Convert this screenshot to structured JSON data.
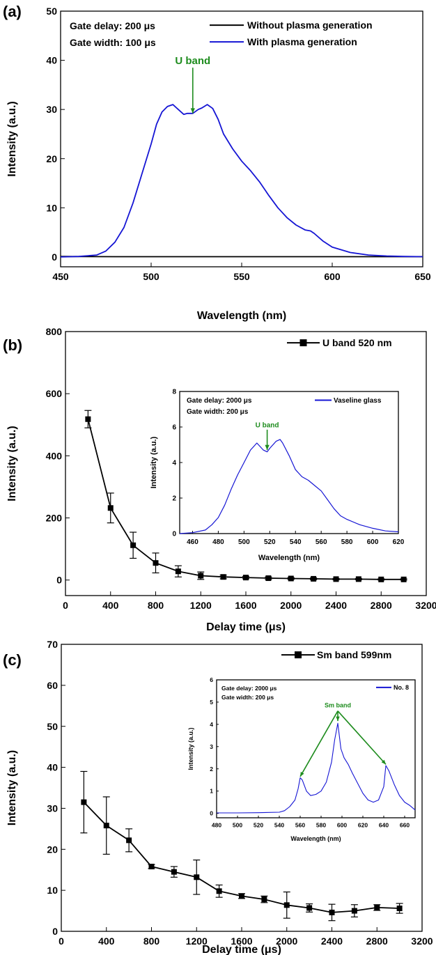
{
  "chart_data": [
    {
      "id": "a",
      "panel_label": "(a)",
      "type": "line",
      "xlabel": "Wavelength (nm)",
      "ylabel": "Intensity (a.u.)",
      "xlim": [
        450,
        650
      ],
      "ylim": [
        -2,
        50
      ],
      "xticks": [
        450,
        500,
        550,
        600,
        650
      ],
      "yticks": [
        0,
        10,
        20,
        30,
        40,
        50
      ],
      "grid": false,
      "legend_position": "top-right",
      "notes": [
        "Gate delay: 200 μs",
        "Gate width: 100 μs"
      ],
      "annotation": {
        "text": "U band",
        "arrow_from": [
          523,
          38.5
        ],
        "arrow_to": [
          523,
          29.2
        ],
        "color": "#1e8c1e"
      },
      "series": [
        {
          "name": "Without plasma generation",
          "color": "#000000",
          "x": [
            450,
            480,
            520,
            560,
            600,
            650
          ],
          "y": [
            0.1,
            0.05,
            0.05,
            0.05,
            0.05,
            0.05
          ]
        },
        {
          "name": "With plasma generation",
          "color": "#1515d4",
          "x": [
            450,
            460,
            470,
            475,
            480,
            485,
            490,
            495,
            500,
            503,
            506,
            509,
            512,
            515,
            518,
            520,
            523,
            526,
            528,
            531,
            534,
            537,
            540,
            545,
            550,
            555,
            560,
            565,
            570,
            575,
            580,
            585,
            588,
            590,
            595,
            600,
            610,
            620,
            630,
            640,
            650
          ],
          "y": [
            0,
            0.1,
            0.4,
            1.2,
            3,
            6,
            11,
            17,
            23,
            27,
            29.5,
            30.6,
            31,
            30,
            29,
            29.2,
            29.2,
            30,
            30.3,
            31,
            30.2,
            28,
            25,
            22,
            19.5,
            17.5,
            15.2,
            12.5,
            10,
            8,
            6.5,
            5.5,
            5.3,
            4.8,
            3.2,
            2,
            0.9,
            0.4,
            0.2,
            0.1,
            0.05
          ]
        }
      ]
    },
    {
      "id": "b",
      "panel_label": "(b)",
      "type": "line",
      "xlabel": "Delay time (μs)",
      "ylabel": "Intensity (a.u.)",
      "xlim": [
        0,
        3200
      ],
      "ylim": [
        -50,
        800
      ],
      "xticks": [
        0,
        400,
        800,
        1200,
        1600,
        2000,
        2400,
        2800,
        3200
      ],
      "yticks": [
        0,
        200,
        400,
        600,
        800
      ],
      "grid": false,
      "legend_position": "top-right",
      "series": [
        {
          "name": "U band 520 nm",
          "color": "#000000",
          "marker": "square",
          "x": [
            200,
            400,
            600,
            800,
            1000,
            1200,
            1400,
            1600,
            1800,
            2000,
            2200,
            2400,
            2600,
            2800,
            3000
          ],
          "y": [
            518,
            232,
            112,
            55,
            28,
            14,
            10,
            8,
            6,
            5,
            4,
            3,
            3,
            2,
            2
          ],
          "error": [
            28,
            48,
            42,
            32,
            18,
            12,
            6,
            4,
            4,
            3,
            3,
            2,
            2,
            2,
            2
          ]
        }
      ],
      "inset": {
        "type": "line",
        "xlabel": "Wavelength (nm)",
        "ylabel": "Intensity (a.u.)",
        "xlim": [
          450,
          620
        ],
        "ylim": [
          0,
          8
        ],
        "xticks": [
          460,
          480,
          500,
          520,
          540,
          560,
          580,
          600,
          620
        ],
        "yticks": [
          0,
          2,
          4,
          6,
          8
        ],
        "notes": [
          "Gate delay: 2000 μs",
          "Gate width: 200 μs"
        ],
        "annotation": {
          "text": "U band",
          "arrow_from": [
            518,
            5.85
          ],
          "arrow_to": [
            518,
            4.7
          ],
          "color": "#1e8c1e"
        },
        "series": [
          {
            "name": "Vaseline glass",
            "color": "#1515d4",
            "x": [
              450,
              460,
              470,
              475,
              480,
              485,
              490,
              495,
              500,
              505,
              510,
              515,
              518,
              520,
              525,
              528,
              530,
              535,
              540,
              545,
              550,
              555,
              560,
              565,
              570,
              575,
              580,
              590,
              600,
              610,
              620
            ],
            "y": [
              0,
              0.05,
              0.2,
              0.5,
              0.9,
              1.6,
              2.5,
              3.3,
              4,
              4.7,
              5.1,
              4.7,
              4.6,
              4.8,
              5.2,
              5.3,
              5.1,
              4.4,
              3.6,
              3.2,
              3,
              2.7,
              2.4,
              1.9,
              1.4,
              1,
              0.8,
              0.5,
              0.3,
              0.15,
              0.1
            ]
          }
        ]
      }
    },
    {
      "id": "c",
      "panel_label": "(c)",
      "type": "line",
      "xlabel": "Delay time (μs)",
      "ylabel": "Intensity (a.u.)",
      "xlim": [
        0,
        3200
      ],
      "ylim": [
        0,
        70
      ],
      "xticks": [
        0,
        400,
        800,
        1200,
        1600,
        2000,
        2400,
        2800,
        3200
      ],
      "yticks": [
        0,
        10,
        20,
        30,
        40,
        50,
        60,
        70
      ],
      "grid": false,
      "legend_position": "top-right",
      "series": [
        {
          "name": "Sm band 599nm",
          "color": "#000000",
          "marker": "square",
          "x": [
            200,
            400,
            600,
            800,
            1000,
            1200,
            1400,
            1600,
            1800,
            2000,
            2200,
            2400,
            2600,
            2800,
            3000
          ],
          "y": [
            31.5,
            25.8,
            22.2,
            15.8,
            14.5,
            13.2,
            9.8,
            8.6,
            7.8,
            6.4,
            5.7,
            4.6,
            5,
            5.8,
            5.6
          ],
          "error": [
            7.5,
            7,
            2.8,
            0.5,
            1.3,
            4.2,
            1.5,
            0.6,
            0.8,
            3.2,
            1,
            2,
            1.5,
            0.7,
            1.2
          ]
        }
      ],
      "inset": {
        "type": "line",
        "xlabel": "Wavelength (nm)",
        "ylabel": "Intensity (a.u.)",
        "xlim": [
          480,
          670
        ],
        "ylim": [
          -0.2,
          6
        ],
        "xticks": [
          480,
          500,
          520,
          540,
          560,
          580,
          600,
          620,
          640,
          660
        ],
        "yticks": [
          0,
          1,
          2,
          3,
          4,
          5,
          6
        ],
        "notes": [
          "Gate delay: 2000 μs",
          "Gate width: 200 μs"
        ],
        "annotation": {
          "text": "Sm band",
          "origin": [
            596,
            4.6
          ],
          "targets": [
            [
              560,
              1.65
            ],
            [
              596,
              4.15
            ],
            [
              642,
              2.2
            ]
          ],
          "color": "#1e8c1e"
        },
        "series": [
          {
            "name": "No. 8",
            "color": "#1515d4",
            "x": [
              480,
              500,
              520,
              540,
              545,
              550,
              555,
              558,
              560,
              562,
              566,
              570,
              575,
              580,
              585,
              590,
              593,
              596,
              599,
              602,
              606,
              610,
              615,
              620,
              625,
              630,
              635,
              640,
              642,
              645,
              650,
              655,
              660,
              665,
              670
            ],
            "y": [
              0.02,
              0.02,
              0.03,
              0.05,
              0.12,
              0.3,
              0.6,
              1.1,
              1.6,
              1.5,
              1.0,
              0.8,
              0.85,
              1.0,
              1.4,
              2.3,
              3.3,
              4.05,
              2.9,
              2.5,
              2.2,
              1.8,
              1.35,
              0.9,
              0.6,
              0.5,
              0.6,
              1.2,
              2.15,
              1.9,
              1.3,
              0.8,
              0.5,
              0.35,
              0.15
            ]
          }
        ]
      }
    }
  ]
}
